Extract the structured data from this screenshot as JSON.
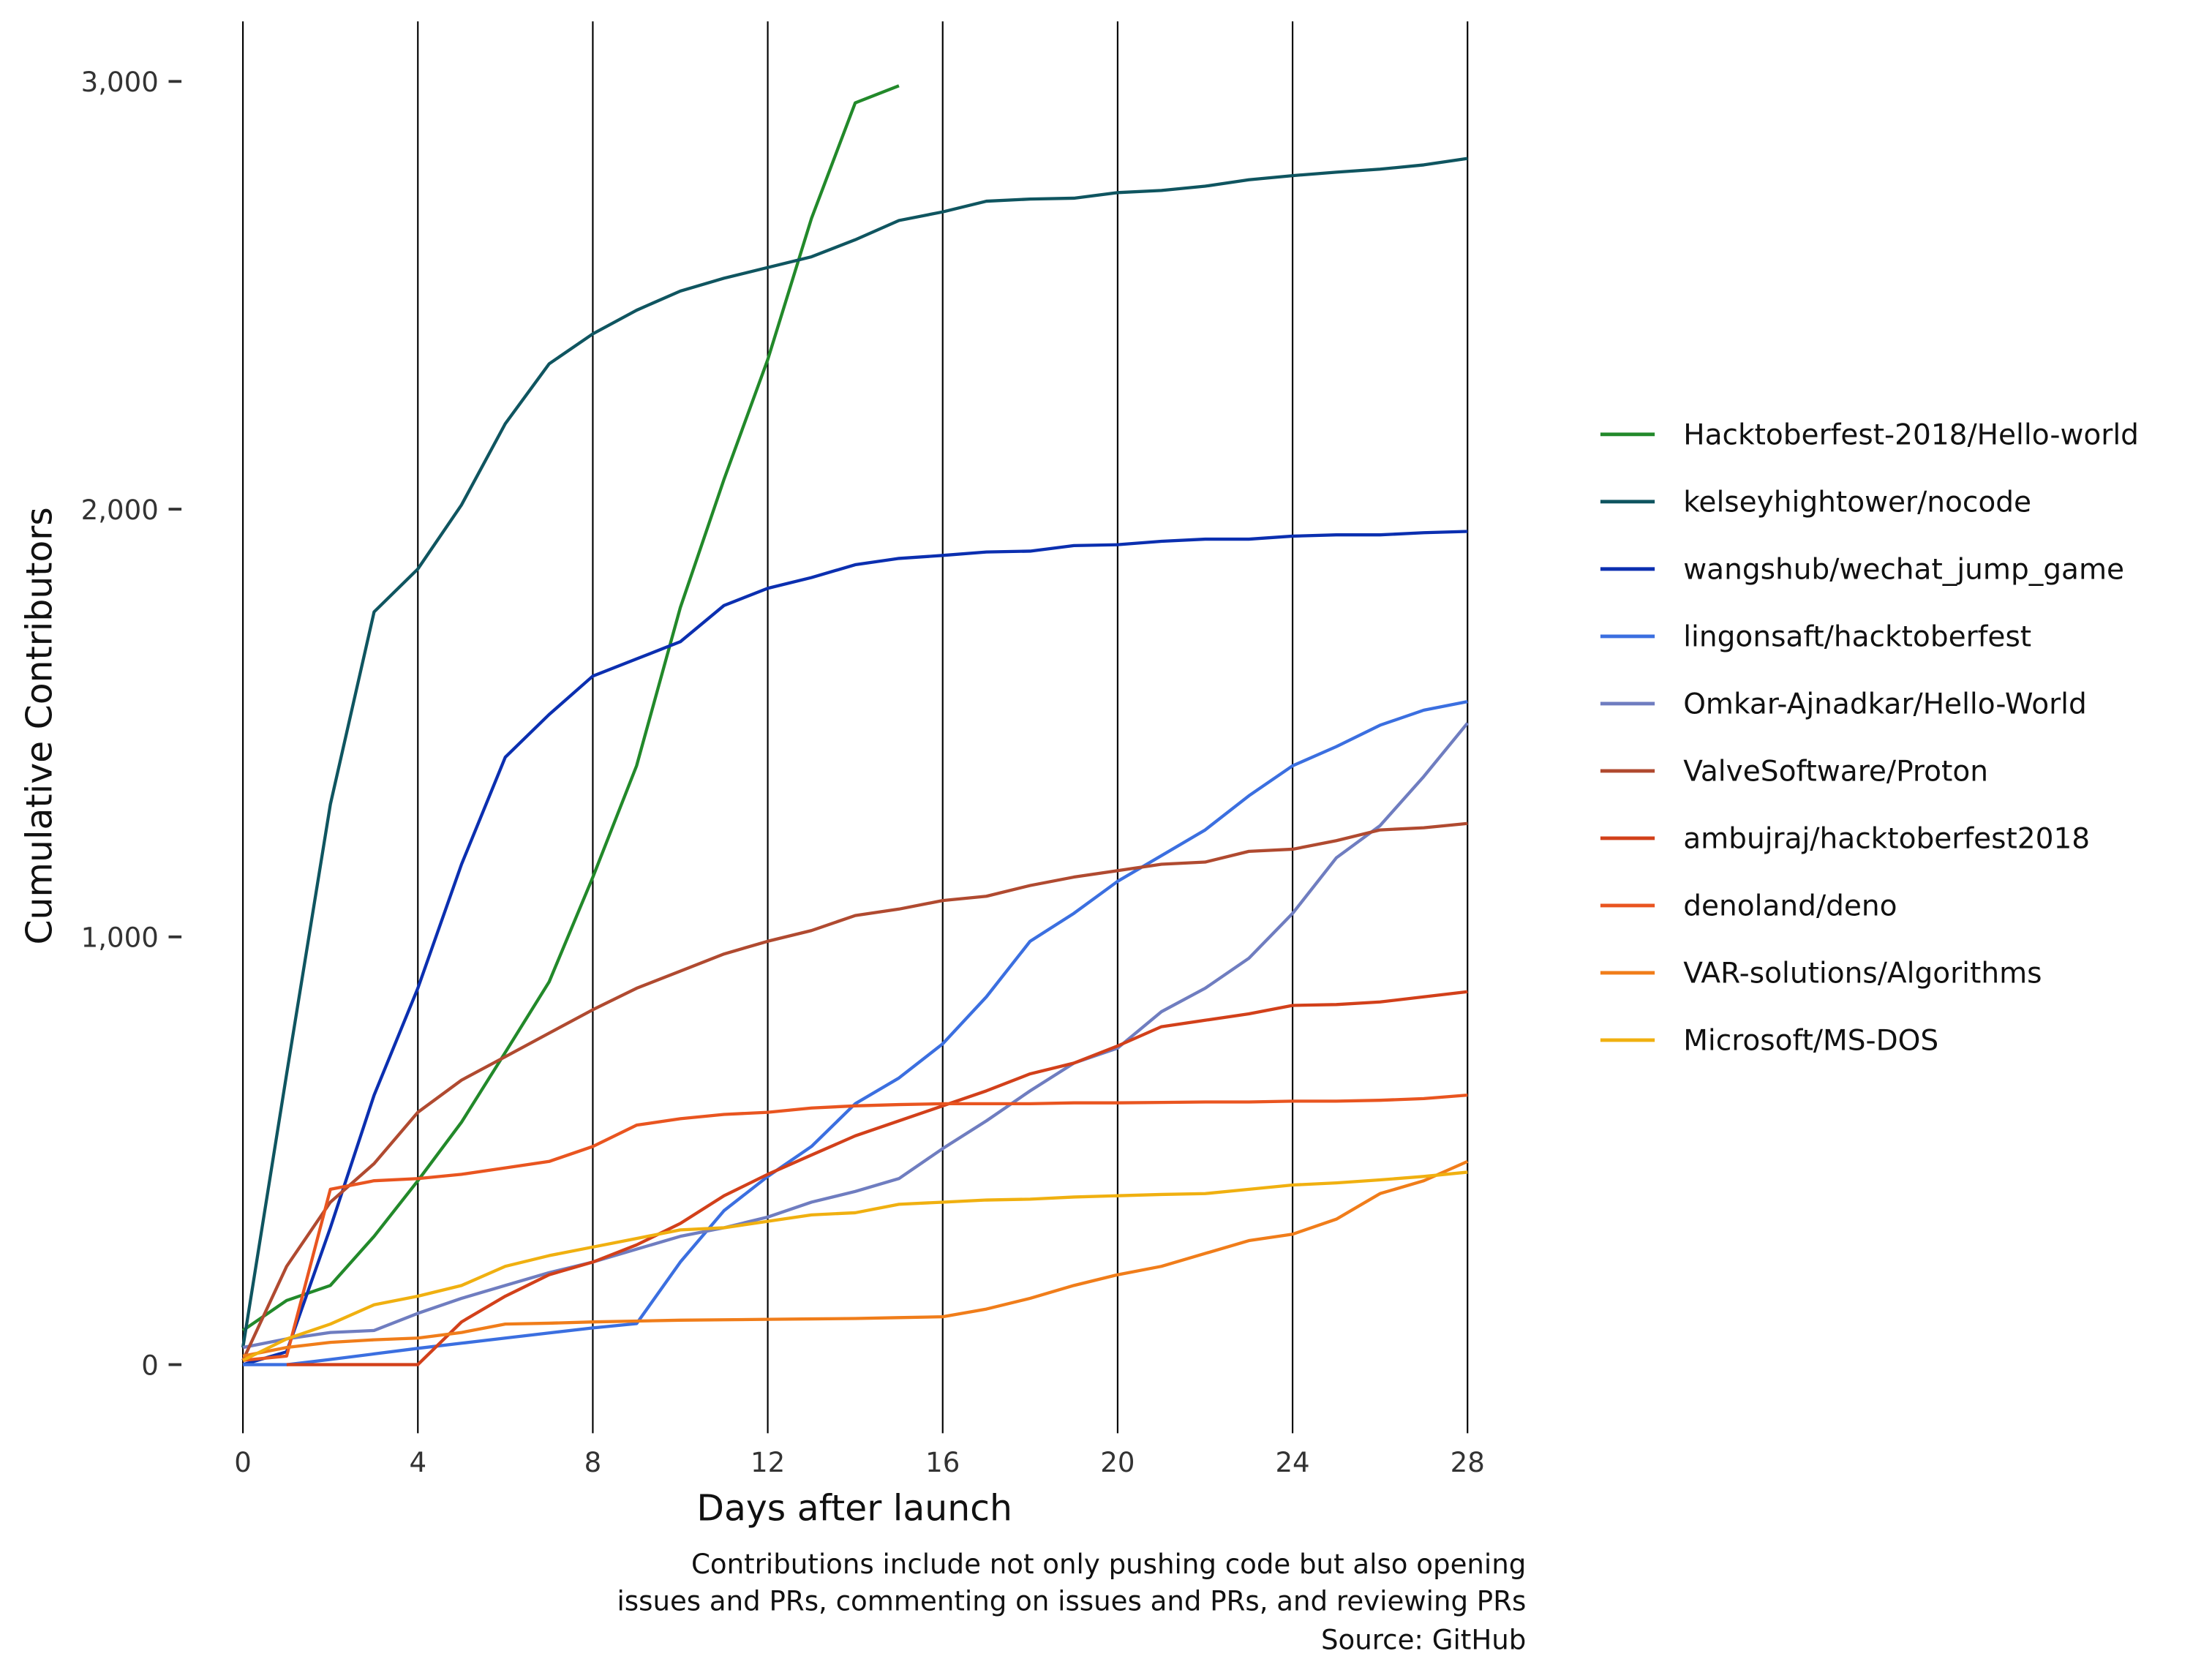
{
  "chart_data": {
    "type": "line",
    "title": "",
    "xlabel": "Days after launch",
    "ylabel": "Cumulative Contributors",
    "xlim": [
      0,
      28
    ],
    "ylim": [
      -150,
      3130
    ],
    "x_ticks": [
      0,
      4,
      8,
      12,
      16,
      20,
      24,
      28
    ],
    "x_tick_labels": [
      "0",
      "4",
      "8",
      "12",
      "16",
      "20",
      "24",
      "28"
    ],
    "y_ticks": [
      0,
      1000,
      2000,
      3000
    ],
    "y_tick_labels": [
      "0",
      "1,000",
      "2,000",
      "3,000"
    ],
    "grid": "vertical lines at x ticks",
    "legend_placement": "right",
    "caption": [
      "Contributions include not only pushing code but also opening",
      "issues and PRs, commenting on issues and PRs, and reviewing PRs",
      "Source: GitHub"
    ],
    "series": [
      {
        "name": "Hacktoberfest-2018/Hello-world",
        "color": "#22892a",
        "x_start": 0,
        "values": [
          80,
          150,
          185,
          300,
          430,
          567,
          730,
          895,
          1140,
          1400,
          1770,
          2070,
          2350,
          2680,
          2950,
          2990
        ]
      },
      {
        "name": "kelseyhightower/nocode",
        "color": "#0f5560",
        "x_start": 0,
        "values": [
          40,
          680,
          1310,
          1760,
          1860,
          2010,
          2200,
          2340,
          2410,
          2465,
          2510,
          2540,
          2565,
          2590,
          2630,
          2675,
          2695,
          2720,
          2725,
          2727,
          2740,
          2745,
          2755,
          2770,
          2780,
          2788,
          2795,
          2805,
          2820
        ]
      },
      {
        "name": "wangshub/wechat_jump_game",
        "color": "#0b2fb0",
        "x_start": 0,
        "values": [
          0,
          30,
          320,
          630,
          880,
          1170,
          1420,
          1520,
          1610,
          1650,
          1690,
          1775,
          1815,
          1840,
          1870,
          1885,
          1892,
          1900,
          1902,
          1915,
          1917,
          1925,
          1930,
          1930,
          1937,
          1940,
          1940,
          1945,
          1948
        ]
      },
      {
        "name": "lingonsaft/hacktoberfest",
        "color": "#3b6fe0",
        "x_start": 0,
        "values": [
          0,
          0,
          12,
          25,
          38,
          50,
          62,
          74,
          86,
          96,
          240,
          360,
          440,
          510,
          610,
          670,
          750,
          860,
          990,
          1055,
          1130,
          1190,
          1250,
          1330,
          1400,
          1445,
          1495,
          1530,
          1550
        ]
      },
      {
        "name": "Omkar-Ajnadkar/Hello-World",
        "color": "#6f7dc0",
        "x_start": 0,
        "values": [
          40,
          60,
          75,
          80,
          120,
          155,
          185,
          215,
          240,
          270,
          300,
          320,
          345,
          380,
          405,
          435,
          505,
          570,
          640,
          705,
          740,
          825,
          880,
          950,
          1055,
          1185,
          1260,
          1375,
          1500
        ]
      },
      {
        "name": "ValveSoftware/Proton",
        "color": "#b04a30",
        "x_start": 0,
        "values": [
          10,
          230,
          380,
          470,
          590,
          665,
          720,
          775,
          830,
          880,
          920,
          960,
          990,
          1015,
          1050,
          1065,
          1085,
          1095,
          1120,
          1140,
          1155,
          1170,
          1175,
          1200,
          1205,
          1225,
          1250,
          1255,
          1265
        ]
      },
      {
        "name": "ambujraj/hacktoberfest2018",
        "color": "#d2401a",
        "x_start": 1,
        "values": [
          0,
          0,
          0,
          0,
          100,
          160,
          210,
          240,
          280,
          330,
          395,
          445,
          490,
          535,
          570,
          605,
          640,
          680,
          705,
          745,
          790,
          805,
          820,
          840,
          842,
          848,
          860,
          872
        ]
      },
      {
        "name": "denoland/deno",
        "color": "#e95520",
        "x_start": 0,
        "values": [
          10,
          20,
          410,
          430,
          435,
          445,
          460,
          475,
          510,
          560,
          575,
          585,
          590,
          600,
          605,
          608,
          610,
          610,
          610,
          612,
          612,
          613,
          614,
          614,
          616,
          616,
          618,
          622,
          630
        ]
      },
      {
        "name": "VAR-solutions/Algorithms",
        "color": "#f07d1a",
        "x_start": 0,
        "values": [
          20,
          40,
          52,
          58,
          62,
          75,
          95,
          97,
          100,
          102,
          104,
          105,
          106,
          107,
          108,
          110,
          112,
          130,
          155,
          185,
          210,
          230,
          260,
          290,
          305,
          340,
          400,
          430,
          475
        ]
      },
      {
        "name": "Microsoft/MS-DOS",
        "color": "#f0b010",
        "x_start": 0,
        "values": [
          10,
          60,
          95,
          140,
          160,
          185,
          230,
          255,
          275,
          295,
          315,
          320,
          335,
          350,
          355,
          375,
          380,
          385,
          387,
          392,
          395,
          398,
          400,
          410,
          420,
          425,
          432,
          440,
          450
        ]
      }
    ]
  }
}
